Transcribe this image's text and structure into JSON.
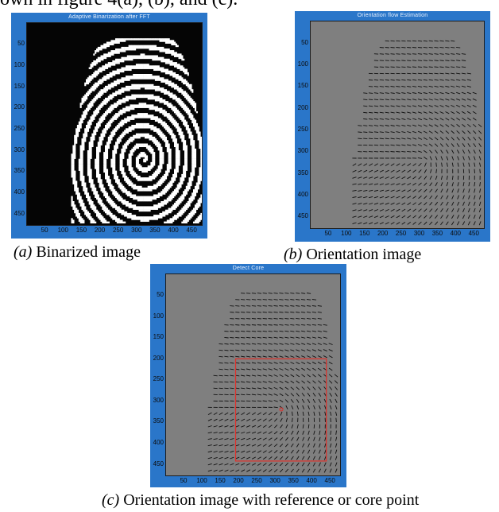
{
  "intro_text": "own in figure 4(a), (b), and (c).",
  "figures": {
    "a": {
      "title": "Adaptive Binarization after FFT",
      "yticks": [
        "50",
        "100",
        "150",
        "200",
        "250",
        "300",
        "350",
        "400",
        "450"
      ],
      "xticks": [
        "50",
        "100",
        "150",
        "200",
        "250",
        "300",
        "350",
        "400",
        "450"
      ],
      "caption_label": "(a)",
      "caption_text": " Binarized image",
      "colors": {
        "frame": "#2a76c9",
        "plot_bg": "#050505",
        "ridges": "#ffffff"
      }
    },
    "b": {
      "title": "Orientation flow Estimation",
      "yticks": [
        "50",
        "100",
        "150",
        "200",
        "250",
        "300",
        "350",
        "400",
        "450"
      ],
      "xticks": [
        "50",
        "100",
        "150",
        "200",
        "250",
        "300",
        "350",
        "400",
        "450"
      ],
      "caption_label": "(b)",
      "caption_text": " Orientation image",
      "colors": {
        "frame": "#2a76c9",
        "plot_bg": "#7f7f7f",
        "vectors": "#101010"
      }
    },
    "c": {
      "title": "Detect Core",
      "yticks": [
        "50",
        "100",
        "150",
        "200",
        "250",
        "300",
        "350",
        "400",
        "450"
      ],
      "xticks": [
        "50",
        "100",
        "150",
        "200",
        "250",
        "300",
        "350",
        "400",
        "450"
      ],
      "caption_label": "(c)",
      "caption_text": " Orientation image with reference or core point",
      "colors": {
        "frame": "#2a76c9",
        "plot_bg": "#7f7f7f",
        "vectors": "#101010",
        "core_box": "#e0302a",
        "core_point": "#e0302a"
      }
    }
  }
}
